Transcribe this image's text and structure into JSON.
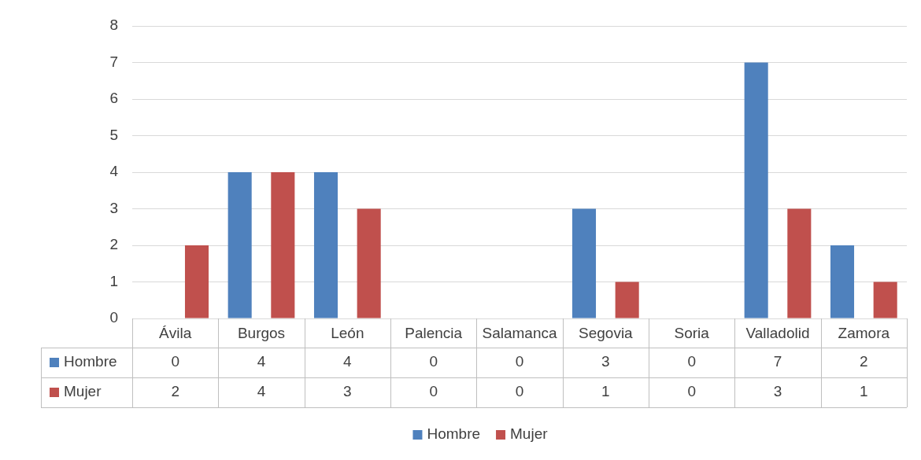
{
  "chart_data": {
    "type": "bar",
    "categories": [
      "Ávila",
      "Burgos",
      "León",
      "Palencia",
      "Salamanca",
      "Segovia",
      "Soria",
      "Valladolid",
      "Zamora"
    ],
    "series": [
      {
        "name": "Hombre",
        "color": "#4f81bd",
        "values": [
          0,
          4,
          4,
          0,
          0,
          3,
          0,
          7,
          2
        ]
      },
      {
        "name": "Mujer",
        "color": "#c0504d",
        "values": [
          2,
          4,
          3,
          0,
          0,
          1,
          0,
          3,
          1
        ]
      }
    ],
    "ylim": [
      0,
      8
    ],
    "yticks": [
      0,
      1,
      2,
      3,
      4,
      5,
      6,
      7,
      8
    ],
    "grid": "y",
    "legend": "bottom",
    "data_labels": true
  }
}
